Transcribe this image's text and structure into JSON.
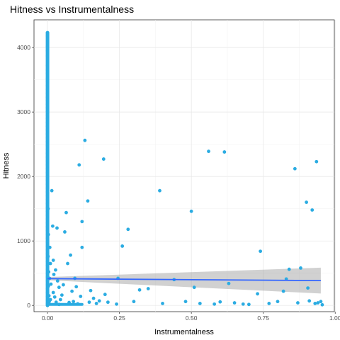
{
  "chart_data": {
    "type": "scatter",
    "title": "Hitness vs Instrumentalness",
    "xlabel": "Instrumentalness",
    "ylabel": "Hitness",
    "xlim": [
      -0.047,
      0.997
    ],
    "ylim": [
      -97,
      4430
    ],
    "x_ticks": [
      0.0,
      0.25,
      0.5,
      0.75,
      1.0
    ],
    "x_tick_labels": [
      "0.00",
      "0.25",
      "0.50",
      "0.75",
      "1.00"
    ],
    "y_ticks": [
      0,
      1000,
      2000,
      3000,
      4000
    ],
    "y_tick_labels": [
      "0",
      "1000",
      "2000",
      "3000",
      "4000"
    ],
    "grid": true,
    "point_color": "#2BACE2",
    "trend_line": {
      "method": "linear",
      "color": "#3366FF",
      "x": [
        0.0,
        0.95
      ],
      "y": [
        415,
        385
      ],
      "ci_lower": [
        390,
        185
      ],
      "ci_upper": [
        440,
        585
      ],
      "ci_color": "#999999"
    },
    "points": [
      [
        0.0,
        4230
      ],
      [
        0.0,
        4180
      ],
      [
        0.0,
        4020
      ],
      [
        0.0,
        3950
      ],
      [
        0.0,
        3870
      ],
      [
        0.0,
        3720
      ],
      [
        0.0,
        3650
      ],
      [
        0.0,
        3600
      ],
      [
        0.0,
        3520
      ],
      [
        0.0,
        3480
      ],
      [
        0.0,
        3410
      ],
      [
        0.0,
        3350
      ],
      [
        0.0,
        3290
      ],
      [
        0.0,
        3230
      ],
      [
        0.0,
        3180
      ],
      [
        0.0,
        3120
      ],
      [
        0.0,
        3070
      ],
      [
        0.0,
        3010
      ],
      [
        0.0,
        2950
      ],
      [
        0.0,
        2900
      ],
      [
        0.0,
        2840
      ],
      [
        0.0,
        2780
      ],
      [
        0.0,
        2720
      ],
      [
        0.0,
        2660
      ],
      [
        0.0,
        2600
      ],
      [
        0.0,
        2540
      ],
      [
        0.0,
        2480
      ],
      [
        0.0,
        2420
      ],
      [
        0.0,
        2360
      ],
      [
        0.0,
        2300
      ],
      [
        0.0,
        2240
      ],
      [
        0.0,
        2180
      ],
      [
        0.0,
        2120
      ],
      [
        0.0,
        2060
      ],
      [
        0.0,
        2000
      ],
      [
        0.0,
        1940
      ],
      [
        0.0,
        1880
      ],
      [
        0.0,
        1820
      ],
      [
        0.0,
        1760
      ],
      [
        0.0,
        1700
      ],
      [
        0.0,
        1640
      ],
      [
        0.0,
        1580
      ],
      [
        0.0,
        1520
      ],
      [
        0.0,
        1460
      ],
      [
        0.0,
        1400
      ],
      [
        0.0,
        1340
      ],
      [
        0.0,
        1280
      ],
      [
        0.0,
        1220
      ],
      [
        0.0,
        1160
      ],
      [
        0.0,
        1100
      ],
      [
        0.0,
        1040
      ],
      [
        0.0,
        980
      ],
      [
        0.0,
        920
      ],
      [
        0.0,
        860
      ],
      [
        0.0,
        800
      ],
      [
        0.0,
        740
      ],
      [
        0.0,
        680
      ],
      [
        0.0,
        620
      ],
      [
        0.0,
        560
      ],
      [
        0.0,
        500
      ],
      [
        0.0,
        440
      ],
      [
        0.0,
        380
      ],
      [
        0.0,
        320
      ],
      [
        0.0,
        260
      ],
      [
        0.0,
        200
      ],
      [
        0.0,
        140
      ],
      [
        0.0,
        80
      ],
      [
        0.0,
        30
      ],
      [
        0.0,
        5
      ],
      [
        0.002,
        1500
      ],
      [
        0.003,
        1100
      ],
      [
        0.002,
        760
      ],
      [
        0.004,
        520
      ],
      [
        0.003,
        300
      ],
      [
        0.005,
        150
      ],
      [
        0.006,
        60
      ],
      [
        0.004,
        20
      ],
      [
        0.008,
        900
      ],
      [
        0.007,
        420
      ],
      [
        0.01,
        650
      ],
      [
        0.012,
        330
      ],
      [
        0.01,
        90
      ],
      [
        0.015,
        1780
      ],
      [
        0.018,
        1230
      ],
      [
        0.02,
        700
      ],
      [
        0.022,
        480
      ],
      [
        0.02,
        200
      ],
      [
        0.025,
        130
      ],
      [
        0.03,
        50
      ],
      [
        0.028,
        550
      ],
      [
        0.033,
        1200
      ],
      [
        0.035,
        380
      ],
      [
        0.04,
        280
      ],
      [
        0.04,
        15
      ],
      [
        0.045,
        90
      ],
      [
        0.05,
        160
      ],
      [
        0.055,
        320
      ],
      [
        0.06,
        1140
      ],
      [
        0.065,
        1440
      ],
      [
        0.07,
        650
      ],
      [
        0.075,
        45
      ],
      [
        0.08,
        780
      ],
      [
        0.085,
        220
      ],
      [
        0.09,
        60
      ],
      [
        0.095,
        420
      ],
      [
        0.1,
        290
      ],
      [
        0.105,
        25
      ],
      [
        0.11,
        2180
      ],
      [
        0.115,
        140
      ],
      [
        0.12,
        1300
      ],
      [
        0.12,
        900
      ],
      [
        0.13,
        2560
      ],
      [
        0.14,
        1620
      ],
      [
        0.145,
        50
      ],
      [
        0.15,
        230
      ],
      [
        0.16,
        110
      ],
      [
        0.17,
        30
      ],
      [
        0.18,
        70
      ],
      [
        0.195,
        2270
      ],
      [
        0.2,
        170
      ],
      [
        0.21,
        50
      ],
      [
        0.24,
        20
      ],
      [
        0.245,
        420
      ],
      [
        0.26,
        920
      ],
      [
        0.28,
        1180
      ],
      [
        0.3,
        60
      ],
      [
        0.32,
        240
      ],
      [
        0.35,
        260
      ],
      [
        0.39,
        1780
      ],
      [
        0.4,
        30
      ],
      [
        0.44,
        400
      ],
      [
        0.48,
        60
      ],
      [
        0.5,
        1460
      ],
      [
        0.51,
        280
      ],
      [
        0.53,
        30
      ],
      [
        0.56,
        2390
      ],
      [
        0.58,
        20
      ],
      [
        0.6,
        55
      ],
      [
        0.615,
        2380
      ],
      [
        0.63,
        340
      ],
      [
        0.65,
        40
      ],
      [
        0.68,
        20
      ],
      [
        0.7,
        15
      ],
      [
        0.73,
        180
      ],
      [
        0.74,
        840
      ],
      [
        0.77,
        30
      ],
      [
        0.8,
        60
      ],
      [
        0.82,
        220
      ],
      [
        0.83,
        410
      ],
      [
        0.84,
        560
      ],
      [
        0.86,
        2120
      ],
      [
        0.87,
        40
      ],
      [
        0.88,
        580
      ],
      [
        0.9,
        1600
      ],
      [
        0.905,
        270
      ],
      [
        0.91,
        70
      ],
      [
        0.92,
        1480
      ],
      [
        0.93,
        30
      ],
      [
        0.935,
        2230
      ],
      [
        0.94,
        40
      ],
      [
        0.95,
        60
      ],
      [
        0.955,
        10
      ]
    ]
  }
}
